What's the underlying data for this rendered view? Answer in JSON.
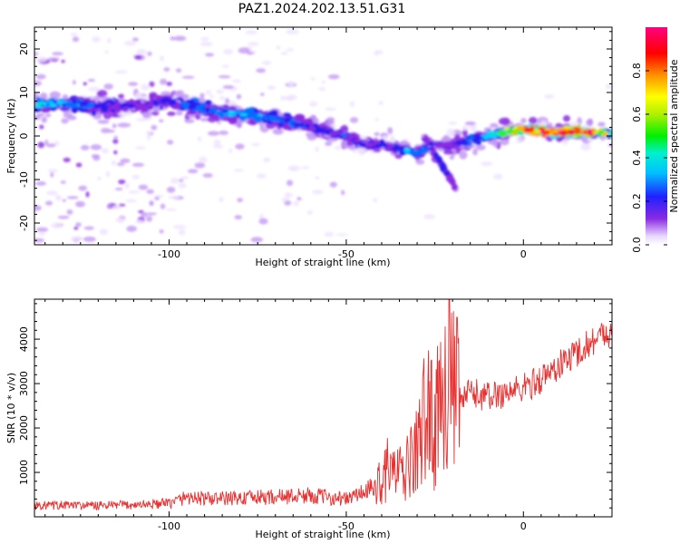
{
  "title": "PAZ1.2024.202.13.51.G31",
  "chart_data": [
    {
      "type": "heatmap",
      "xlabel": "Height of straight line (km)",
      "ylabel": "Frequency (Hz)",
      "xlim": [
        -138,
        25
      ],
      "ylim": [
        -25,
        25
      ],
      "xticks": [
        -100,
        -50,
        0
      ],
      "yticks": [
        -20,
        -10,
        0,
        10,
        20
      ],
      "colormap": "rainbow-normalized",
      "colorbar": {
        "label": "Normalized spectral amplitude",
        "range": [
          0,
          1
        ],
        "ticks": [
          0.0,
          0.2,
          0.4,
          0.6,
          0.8
        ]
      },
      "ridge": {
        "x": [
          -138,
          -130,
          -120,
          -110,
          -100,
          -90,
          -80,
          -70,
          -60,
          -50,
          -45,
          -40,
          -35,
          -30,
          -25,
          -20,
          -15,
          -10,
          -5,
          0,
          5,
          10,
          15,
          20,
          25
        ],
        "freq": [
          7,
          7.5,
          7,
          7,
          8,
          6,
          5,
          4,
          2,
          0,
          -2,
          -2,
          -3,
          -4,
          -2,
          -2,
          -1,
          0,
          1,
          1.5,
          1,
          0.8,
          1,
          0.8,
          0.5
        ],
        "amplitude": [
          0.5,
          0.45,
          0.35,
          0.3,
          0.35,
          0.4,
          0.45,
          0.4,
          0.35,
          0.35,
          0.3,
          0.3,
          0.4,
          0.45,
          0.3,
          0.3,
          0.4,
          0.5,
          0.65,
          0.8,
          0.9,
          0.95,
          0.9,
          0.85,
          0.6
        ]
      },
      "branch": {
        "x": [
          -28,
          -25,
          -22,
          -19
        ],
        "freq": [
          0,
          -4,
          -8,
          -12
        ]
      }
    },
    {
      "type": "line",
      "xlabel": "Height of straight line (km)",
      "ylabel": "SNR (10 * v/v)",
      "xlim": [
        -138,
        25
      ],
      "ylim": [
        0,
        4900
      ],
      "xticks": [
        -100,
        -50,
        0
      ],
      "yticks": [
        1000,
        2000,
        3000,
        4000
      ],
      "color": "#e83030",
      "x": [
        -138,
        -130,
        -120,
        -110,
        -100,
        -95,
        -90,
        -80,
        -70,
        -60,
        -50,
        -42,
        -38,
        -34,
        -30,
        -27,
        -25,
        -22,
        -20,
        -18,
        -15,
        -10,
        -5,
        0,
        5,
        10,
        15,
        20,
        25
      ],
      "values": [
        250,
        260,
        250,
        270,
        300,
        450,
        400,
        420,
        450,
        480,
        400,
        650,
        1100,
        900,
        1500,
        2500,
        1900,
        3500,
        2800,
        2600,
        2800,
        2700,
        2800,
        2900,
        3100,
        3400,
        3700,
        4000,
        4200
      ]
    }
  ]
}
